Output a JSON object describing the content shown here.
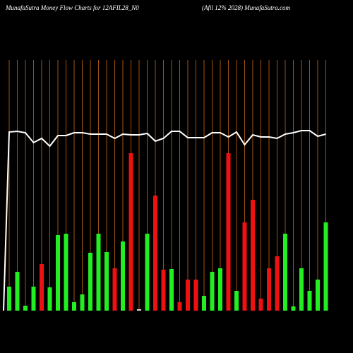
{
  "chart_data": {
    "type": "bar",
    "title": "MunafaSutra  Money Flow  Charts for 12AFIL28_N0",
    "subtitle": "(Afil 12% 2028) MunafaSutra.com",
    "categories": [
      null,
      null,
      null,
      null,
      null,
      null,
      null,
      null,
      null,
      null,
      null,
      null,
      null,
      null,
      null,
      null,
      null,
      null,
      null,
      null,
      null,
      null,
      null,
      null,
      null,
      null,
      null,
      null,
      null,
      null,
      null,
      null,
      null,
      null,
      null,
      null,
      null,
      null,
      null,
      null
    ],
    "values": [
      34,
      55,
      7,
      34,
      66,
      33,
      107,
      109,
      12,
      23,
      82,
      109,
      83,
      60,
      98,
      223,
      2,
      109,
      163,
      58,
      59,
      12,
      44,
      44,
      21,
      55,
      60,
      223,
      28,
      125,
      157,
      17,
      60,
      77,
      109,
      6,
      60,
      28,
      44,
      125
    ],
    "colors": [
      "#22ee22",
      "#22ee22",
      "#22ee22",
      "#22ee22",
      "#ee1111",
      "#22ee22",
      "#22ee22",
      "#22ee22",
      "#22ee22",
      "#22ee22",
      "#22ee22",
      "#22ee22",
      "#22ee22",
      "#ee1111",
      "#22ee22",
      "#ee1111",
      "#dddddd",
      "#22ee22",
      "#ee1111",
      "#ee1111",
      "#22ee22",
      "#ee1111",
      "#ee1111",
      "#ee1111",
      "#22ee22",
      "#22ee22",
      "#22ee22",
      "#ee1111",
      "#22ee22",
      "#ee1111",
      "#ee1111",
      "#ee1111",
      "#ee1111",
      "#ee1111",
      "#22ee22",
      "#22ee22",
      "#22ee22",
      "#22ee22",
      "#22ee22",
      "#22ee22"
    ],
    "line": [
      253,
      254,
      252,
      238,
      244,
      233,
      248,
      248,
      252,
      252,
      250,
      250,
      250,
      244,
      250,
      249,
      249,
      251,
      240,
      244,
      254,
      254,
      245,
      245,
      245,
      252,
      252,
      246,
      253,
      235,
      249,
      246,
      246,
      244,
      250,
      252,
      255,
      255,
      247,
      250
    ],
    "ylim": [
      0,
      355
    ],
    "grid": true
  }
}
